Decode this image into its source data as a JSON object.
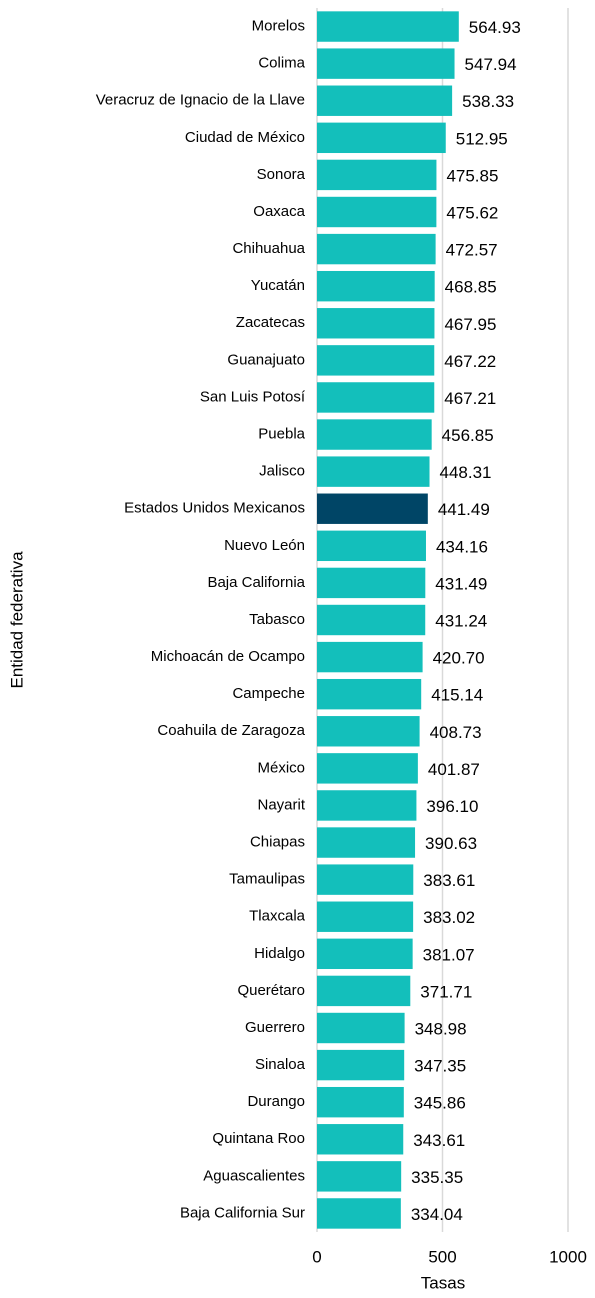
{
  "chart_data": {
    "type": "bar",
    "orientation": "horizontal",
    "x_label": "Tasas",
    "y_label": "Entidad federativa",
    "categories": [
      "Morelos",
      "Colima",
      "Veracruz de Ignacio de la Llave",
      "Ciudad de México",
      "Sonora",
      "Oaxaca",
      "Chihuahua",
      "Yucatán",
      "Zacatecas",
      "Guanajuato",
      "San Luis Potosí",
      "Puebla",
      "Jalisco",
      "Estados Unidos Mexicanos",
      "Nuevo León",
      "Baja California",
      "Tabasco",
      "Michoacán de Ocampo",
      "Campeche",
      "Coahuila de Zaragoza",
      "México",
      "Nayarit",
      "Chiapas",
      "Tamaulipas",
      "Tlaxcala",
      "Hidalgo",
      "Querétaro",
      "Guerrero",
      "Sinaloa",
      "Durango",
      "Quintana Roo",
      "Aguascalientes",
      "Baja California Sur"
    ],
    "values": [
      564.93,
      547.94,
      538.33,
      512.95,
      475.85,
      475.62,
      472.57,
      468.85,
      467.95,
      467.22,
      467.21,
      456.85,
      448.31,
      441.49,
      434.16,
      431.49,
      431.24,
      420.7,
      415.14,
      408.73,
      401.87,
      396.1,
      390.63,
      383.61,
      383.02,
      381.07,
      371.71,
      348.98,
      347.35,
      345.86,
      343.61,
      335.35,
      334.04
    ],
    "value_labels": [
      "564.93",
      "547.94",
      "538.33",
      "512.95",
      "475.85",
      "475.62",
      "472.57",
      "468.85",
      "467.95",
      "467.22",
      "467.21",
      "456.85",
      "448.31",
      "441.49",
      "434.16",
      "431.49",
      "431.24",
      "420.70",
      "415.14",
      "408.73",
      "401.87",
      "396.10",
      "390.63",
      "383.61",
      "383.02",
      "381.07",
      "371.71",
      "348.98",
      "347.35",
      "345.86",
      "343.61",
      "335.35",
      "334.04"
    ],
    "colors": [
      "#13bfbb",
      "#13bfbb",
      "#13bfbb",
      "#13bfbb",
      "#13bfbb",
      "#13bfbb",
      "#13bfbb",
      "#13bfbb",
      "#13bfbb",
      "#13bfbb",
      "#13bfbb",
      "#13bfbb",
      "#13bfbb",
      "#004566",
      "#13bfbb",
      "#13bfbb",
      "#13bfbb",
      "#13bfbb",
      "#13bfbb",
      "#13bfbb",
      "#13bfbb",
      "#13bfbb",
      "#13bfbb",
      "#13bfbb",
      "#13bfbb",
      "#13bfbb",
      "#13bfbb",
      "#13bfbb",
      "#13bfbb",
      "#13bfbb",
      "#13bfbb",
      "#13bfbb",
      "#13bfbb"
    ],
    "xlim": [
      0,
      1000
    ],
    "xticks": [
      0,
      500,
      1000
    ],
    "grid": true
  }
}
